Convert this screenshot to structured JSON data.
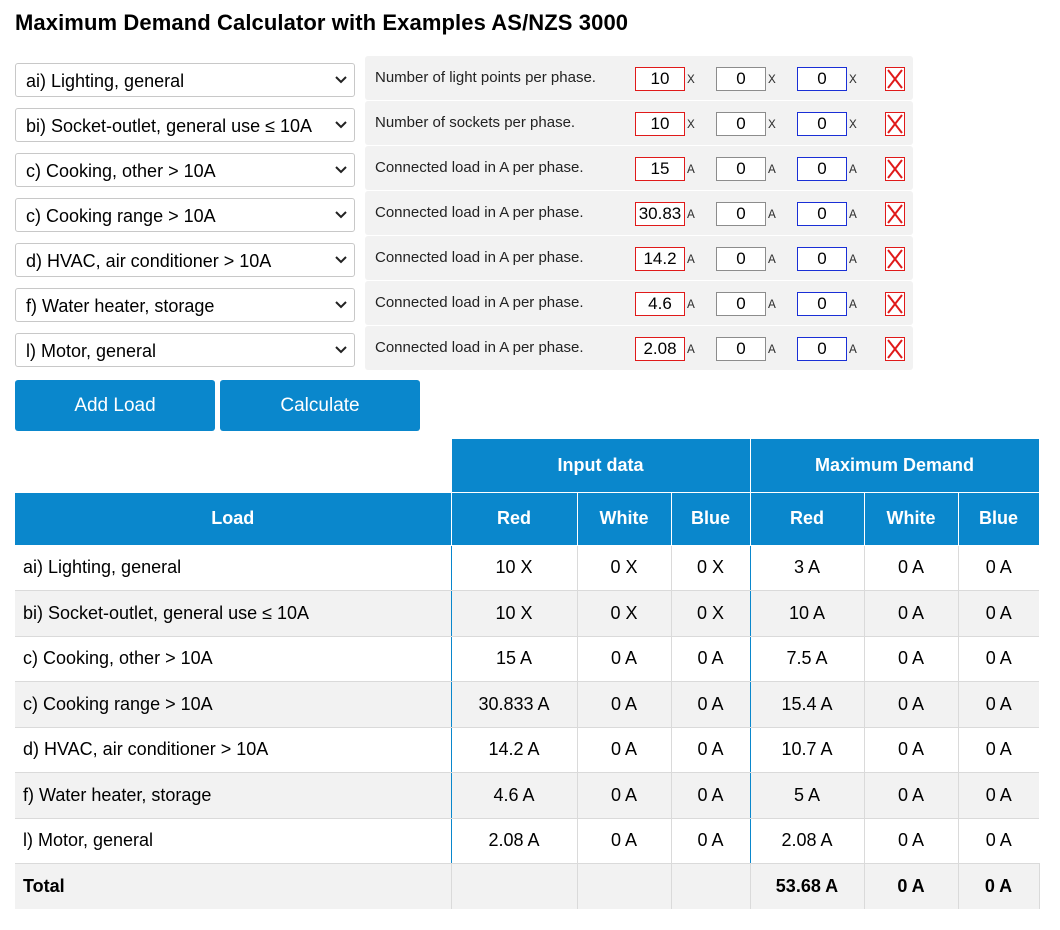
{
  "title": "Maximum Demand Calculator with Examples AS/NZS 3000",
  "loads": [
    {
      "type": "ai) Lighting, general",
      "param_label": "Number of light points per phase.",
      "red": "10",
      "white": "0",
      "blue": "0",
      "unit": "X"
    },
    {
      "type": "bi) Socket-outlet, general use ≤ 10A",
      "param_label": "Number of sockets per phase.",
      "red": "10",
      "white": "0",
      "blue": "0",
      "unit": "X"
    },
    {
      "type": "c) Cooking, other > 10A",
      "param_label": "Connected load in A per phase.",
      "red": "15",
      "white": "0",
      "blue": "0",
      "unit": "A"
    },
    {
      "type": "c) Cooking range > 10A",
      "param_label": "Connected load in A per phase.",
      "red": "30.83",
      "white": "0",
      "blue": "0",
      "unit": "A"
    },
    {
      "type": "d) HVAC, air conditioner > 10A",
      "param_label": "Connected load in A per phase.",
      "red": "14.2",
      "white": "0",
      "blue": "0",
      "unit": "A"
    },
    {
      "type": "f) Water heater, storage",
      "param_label": "Connected load in A per phase.",
      "red": "4.6",
      "white": "0",
      "blue": "0",
      "unit": "A"
    },
    {
      "type": "l) Motor, general",
      "param_label": "Connected load in A per phase.",
      "red": "2.08",
      "white": "0",
      "blue": "0",
      "unit": "A"
    }
  ],
  "buttons": {
    "add_load": "Add Load",
    "calculate": "Calculate"
  },
  "table": {
    "group_headers": {
      "input": "Input data",
      "max": "Maximum Demand"
    },
    "headers": {
      "load": "Load",
      "red": "Red",
      "white": "White",
      "blue": "Blue"
    },
    "rows": [
      {
        "load": "ai) Lighting, general",
        "in_red": "10 X",
        "in_white": "0 X",
        "in_blue": "0 X",
        "md_red": "3 A",
        "md_white": "0 A",
        "md_blue": "0 A"
      },
      {
        "load": "bi) Socket-outlet, general use ≤ 10A",
        "in_red": "10 X",
        "in_white": "0 X",
        "in_blue": "0 X",
        "md_red": "10 A",
        "md_white": "0 A",
        "md_blue": "0 A"
      },
      {
        "load": "c) Cooking, other > 10A",
        "in_red": "15 A",
        "in_white": "0 A",
        "in_blue": "0 A",
        "md_red": "7.5 A",
        "md_white": "0 A",
        "md_blue": "0 A"
      },
      {
        "load": "c) Cooking range > 10A",
        "in_red": "30.833 A",
        "in_white": "0 A",
        "in_blue": "0 A",
        "md_red": "15.4 A",
        "md_white": "0 A",
        "md_blue": "0 A"
      },
      {
        "load": "d) HVAC, air conditioner > 10A",
        "in_red": "14.2 A",
        "in_white": "0 A",
        "in_blue": "0 A",
        "md_red": "10.7 A",
        "md_white": "0 A",
        "md_blue": "0 A"
      },
      {
        "load": "f) Water heater, storage",
        "in_red": "4.6 A",
        "in_white": "0 A",
        "in_blue": "0 A",
        "md_red": "5 A",
        "md_white": "0 A",
        "md_blue": "0 A"
      },
      {
        "load": "l) Motor, general",
        "in_red": "2.08 A",
        "in_white": "0 A",
        "in_blue": "0 A",
        "md_red": "2.08 A",
        "md_white": "0 A",
        "md_blue": "0 A"
      }
    ],
    "total": {
      "label": "Total",
      "md_red": "53.68 A",
      "md_white": "0 A",
      "md_blue": "0 A"
    }
  },
  "colors": {
    "accent": "#0a87cc",
    "red_border": "#e01a1a",
    "blue_border": "#1a2fd6",
    "alt_row": "#f2f2f2"
  },
  "icons": {
    "dropdown": "chevron-down-icon",
    "remove": "remove-x-icon"
  }
}
